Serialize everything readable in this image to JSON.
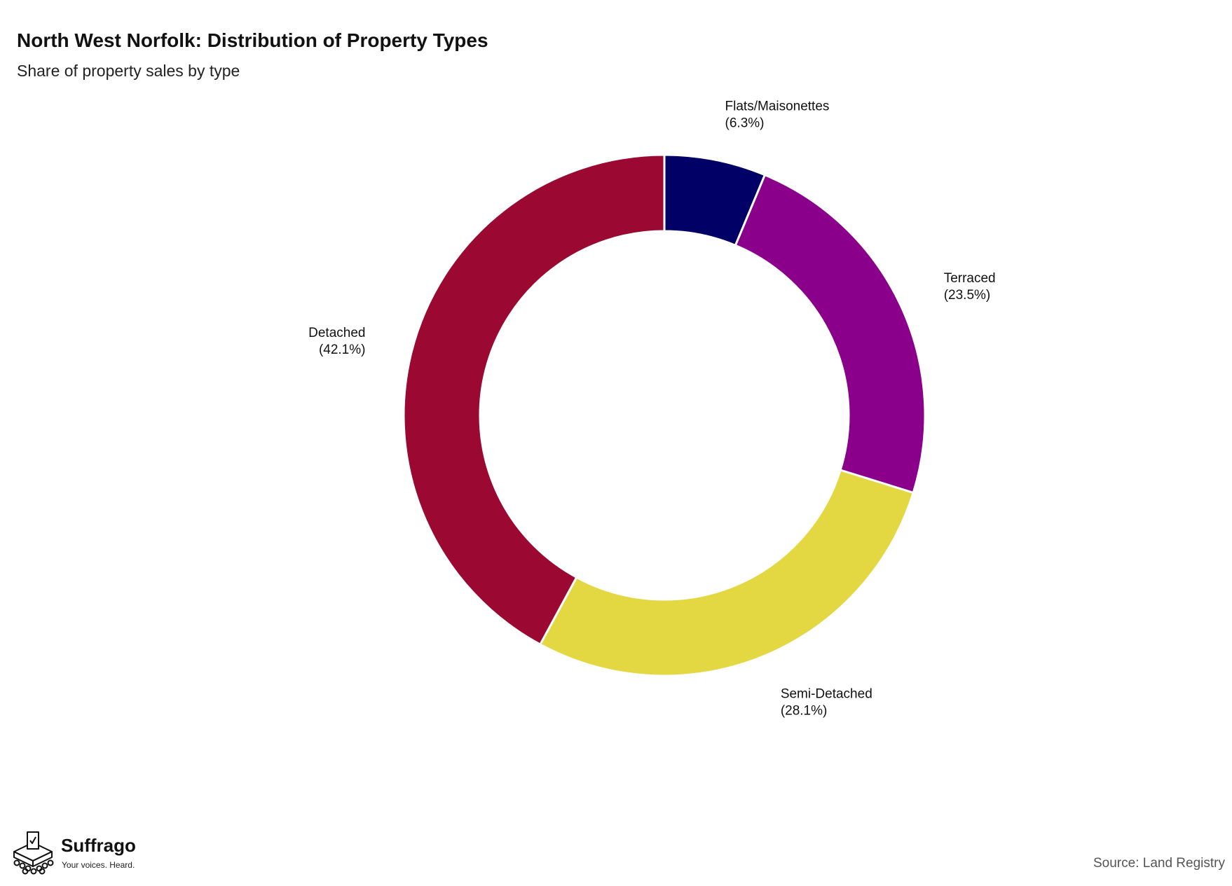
{
  "title": "North West Norfolk: Distribution of Property Types",
  "subtitle": "Share of property sales by type",
  "source": "Source: Land Registry",
  "logo": {
    "name": "Suffrago",
    "tagline": "Your voices. Heard."
  },
  "chart_data": {
    "type": "pie",
    "variant": "donut",
    "title": "North West Norfolk: Distribution of Property Types",
    "subtitle": "Share of property sales by type",
    "legend": "none",
    "slices": [
      {
        "name": "Flats/Maisonettes",
        "value": 6.3,
        "label": "(6.3%)",
        "color": "#000066"
      },
      {
        "name": "Terraced",
        "value": 23.5,
        "label": "(23.5%)",
        "color": "#8b008b"
      },
      {
        "name": "Semi-Detached",
        "value": 28.1,
        "label": "(28.1%)",
        "color": "#e3d742"
      },
      {
        "name": "Detached",
        "value": 42.1,
        "label": "(42.1%)",
        "color": "#9b0932"
      }
    ]
  }
}
